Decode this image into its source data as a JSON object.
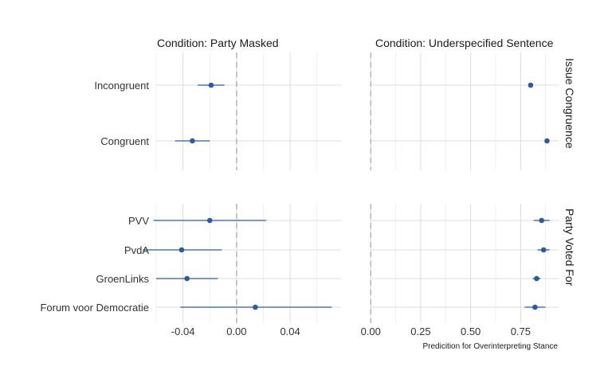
{
  "chart_data": {
    "type": "scatter",
    "subtype": "coefficient plot with confidence intervals, faceted",
    "x_title": "Predicition for Overinterpreting Stance",
    "grid": true,
    "reference_line": 0,
    "columns": [
      {
        "title": "Condition: Party Masked",
        "xlim": [
          -0.06,
          0.078
        ],
        "ticks": [
          -0.04,
          0.0,
          0.04
        ],
        "tick_labels": [
          "-0.04",
          "0.00",
          "0.04"
        ]
      },
      {
        "title": "Condition: Underspecified Sentence",
        "xlim": [
          -0.005,
          0.94
        ],
        "ticks": [
          0.0,
          0.25,
          0.5,
          0.75
        ],
        "tick_labels": [
          "0.00",
          "0.25",
          "0.50",
          "0.75"
        ]
      }
    ],
    "rows": [
      {
        "label": "Issue Congruence",
        "categories": [
          "Incongruent",
          "Congruent"
        ],
        "points": [
          [
            {
              "est": -0.019,
              "lo": -0.029,
              "hi": -0.009
            },
            {
              "est": -0.033,
              "lo": -0.046,
              "hi": -0.02
            }
          ],
          [
            {
              "est": 0.8,
              "lo": 0.8,
              "hi": 0.8
            },
            {
              "est": 0.882,
              "lo": 0.882,
              "hi": 0.882
            }
          ]
        ]
      },
      {
        "label": "Party Voted For",
        "categories": [
          "PVV",
          "PvdA",
          "GroenLinks",
          "Forum voor Democratie"
        ],
        "points": [
          [
            {
              "est": -0.02,
              "lo": -0.062,
              "hi": 0.022
            },
            {
              "est": -0.041,
              "lo": -0.07,
              "hi": -0.011
            },
            {
              "est": -0.037,
              "lo": -0.06,
              "hi": -0.014
            },
            {
              "est": 0.014,
              "lo": -0.042,
              "hi": 0.071
            }
          ],
          [
            {
              "est": 0.855,
              "lo": 0.815,
              "hi": 0.895
            },
            {
              "est": 0.865,
              "lo": 0.835,
              "hi": 0.895
            },
            {
              "est": 0.83,
              "lo": 0.81,
              "hi": 0.85
            },
            {
              "est": 0.822,
              "lo": 0.77,
              "hi": 0.874
            }
          ]
        ]
      }
    ]
  }
}
